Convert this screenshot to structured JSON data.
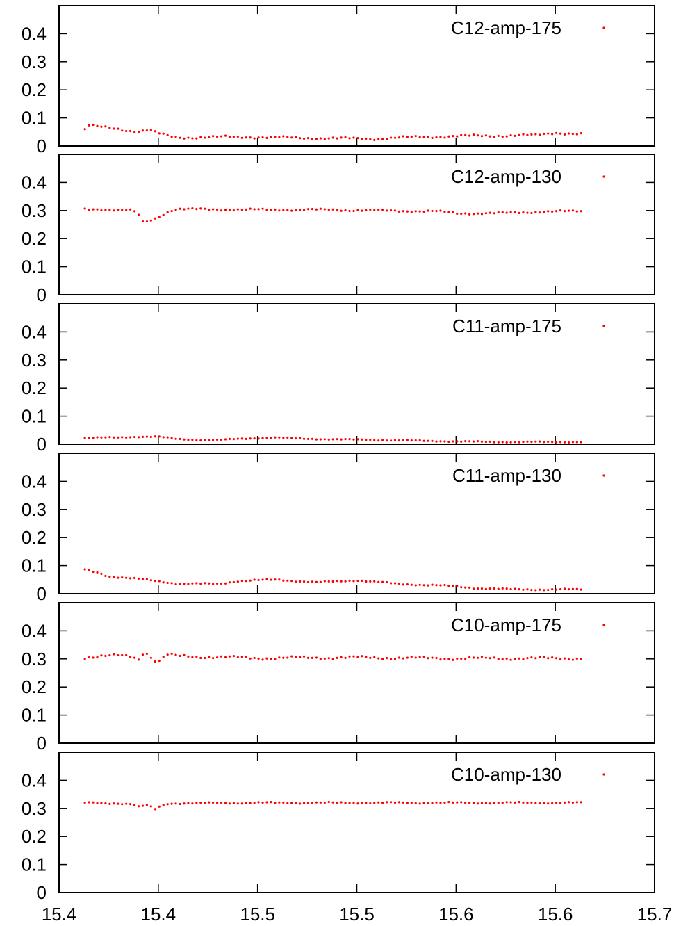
{
  "chart_data": {
    "type": "scatter",
    "x_tick_labels": [
      "15.4",
      "15.4",
      "15.5",
      "15.5",
      "15.6",
      "15.6",
      "15.7"
    ],
    "x_tick_values": [
      15.4,
      15.45,
      15.5,
      15.55,
      15.6,
      15.65,
      15.7
    ],
    "xlim": [
      15.4,
      15.7
    ],
    "y_tick_labels": [
      "0",
      "0.1",
      "0.2",
      "0.3",
      "0.4"
    ],
    "y_tick_values": [
      0,
      0.1,
      0.2,
      0.3,
      0.4
    ],
    "ylim": [
      0,
      0.5
    ],
    "marker_color": "#ff0000",
    "grid": false,
    "legend_position": "top-right",
    "x_start": 15.413,
    "x_end": 15.663,
    "n_points": 121,
    "panels": [
      {
        "name": "C12-amp-175",
        "profile": [
          [
            15.413,
            0.06
          ],
          [
            15.415,
            0.074
          ],
          [
            15.42,
            0.068
          ],
          [
            15.428,
            0.062
          ],
          [
            15.435,
            0.055
          ],
          [
            15.44,
            0.052
          ],
          [
            15.445,
            0.058
          ],
          [
            15.45,
            0.045
          ],
          [
            15.455,
            0.035
          ],
          [
            15.46,
            0.03
          ],
          [
            15.48,
            0.032
          ],
          [
            15.5,
            0.032
          ],
          [
            15.52,
            0.029
          ],
          [
            15.54,
            0.027
          ],
          [
            15.56,
            0.026
          ],
          [
            15.58,
            0.032
          ],
          [
            15.6,
            0.035
          ],
          [
            15.62,
            0.037
          ],
          [
            15.64,
            0.038
          ],
          [
            15.65,
            0.048
          ],
          [
            15.663,
            0.042
          ]
        ],
        "noise": 0.005
      },
      {
        "name": "C12-amp-130",
        "profile": [
          [
            15.413,
            0.305
          ],
          [
            15.42,
            0.305
          ],
          [
            15.43,
            0.302
          ],
          [
            15.437,
            0.3
          ],
          [
            15.44,
            0.285
          ],
          [
            15.442,
            0.258
          ],
          [
            15.445,
            0.262
          ],
          [
            15.448,
            0.27
          ],
          [
            15.452,
            0.285
          ],
          [
            15.456,
            0.3
          ],
          [
            15.46,
            0.305
          ],
          [
            15.5,
            0.303
          ],
          [
            15.53,
            0.303
          ],
          [
            15.56,
            0.3
          ],
          [
            15.59,
            0.297
          ],
          [
            15.6,
            0.29
          ],
          [
            15.62,
            0.29
          ],
          [
            15.64,
            0.295
          ],
          [
            15.663,
            0.298
          ]
        ],
        "noise": 0.004
      },
      {
        "name": "C11-amp-175",
        "profile": [
          [
            15.413,
            0.023
          ],
          [
            15.43,
            0.024
          ],
          [
            15.44,
            0.027
          ],
          [
            15.45,
            0.027
          ],
          [
            15.46,
            0.018
          ],
          [
            15.47,
            0.015
          ],
          [
            15.48,
            0.015
          ],
          [
            15.5,
            0.022
          ],
          [
            15.51,
            0.024
          ],
          [
            15.52,
            0.02
          ],
          [
            15.56,
            0.015
          ],
          [
            15.6,
            0.01
          ],
          [
            15.62,
            0.008
          ],
          [
            15.663,
            0.008
          ]
        ],
        "noise": 0.002
      },
      {
        "name": "C11-amp-130",
        "profile": [
          [
            15.413,
            0.085
          ],
          [
            15.42,
            0.075
          ],
          [
            15.425,
            0.062
          ],
          [
            15.44,
            0.052
          ],
          [
            15.45,
            0.045
          ],
          [
            15.46,
            0.035
          ],
          [
            15.48,
            0.035
          ],
          [
            15.49,
            0.045
          ],
          [
            15.51,
            0.05
          ],
          [
            15.52,
            0.045
          ],
          [
            15.53,
            0.04
          ],
          [
            15.55,
            0.048
          ],
          [
            15.57,
            0.035
          ],
          [
            15.59,
            0.03
          ],
          [
            15.61,
            0.02
          ],
          [
            15.63,
            0.015
          ],
          [
            15.663,
            0.015
          ]
        ],
        "noise": 0.003
      },
      {
        "name": "C10-amp-175",
        "profile": [
          [
            15.413,
            0.305
          ],
          [
            15.43,
            0.312
          ],
          [
            15.437,
            0.31
          ],
          [
            15.44,
            0.298
          ],
          [
            15.443,
            0.33
          ],
          [
            15.447,
            0.3
          ],
          [
            15.45,
            0.288
          ],
          [
            15.454,
            0.315
          ],
          [
            15.46,
            0.31
          ],
          [
            15.5,
            0.303
          ],
          [
            15.55,
            0.305
          ],
          [
            15.6,
            0.302
          ],
          [
            15.663,
            0.302
          ]
        ],
        "noise": 0.006
      },
      {
        "name": "C10-amp-130",
        "profile": [
          [
            15.413,
            0.32
          ],
          [
            15.43,
            0.318
          ],
          [
            15.437,
            0.315
          ],
          [
            15.44,
            0.305
          ],
          [
            15.445,
            0.312
          ],
          [
            15.448,
            0.295
          ],
          [
            15.45,
            0.305
          ],
          [
            15.455,
            0.318
          ],
          [
            15.5,
            0.32
          ],
          [
            15.55,
            0.32
          ],
          [
            15.6,
            0.32
          ],
          [
            15.663,
            0.32
          ]
        ],
        "noise": 0.003
      }
    ]
  }
}
